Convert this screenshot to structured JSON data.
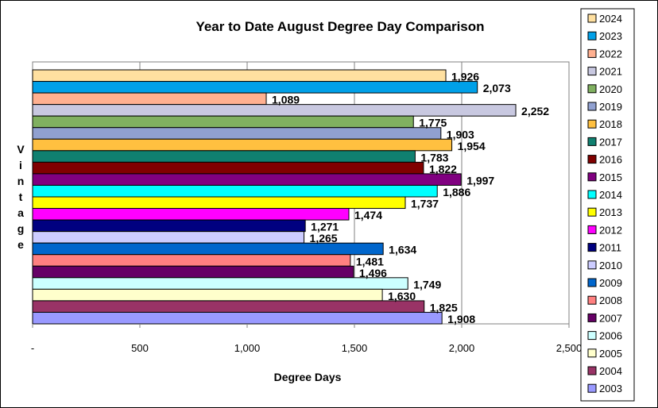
{
  "chart_data": {
    "type": "bar",
    "orientation": "horizontal",
    "title": "Year to Date August Degree Day Comparison",
    "xlabel": "Degree Days",
    "ylabel": "Vintage",
    "xlim": [
      0,
      2500
    ],
    "x_ticks": [
      0,
      500,
      1000,
      1500,
      2000,
      2500
    ],
    "x_tick_labels": [
      "-",
      "500",
      "1,000",
      "1,500",
      "2,000",
      "2,500"
    ],
    "grid": "vertical",
    "legend_position": "right",
    "categories": [
      "2024",
      "2023",
      "2022",
      "2021",
      "2020",
      "2019",
      "2018",
      "2017",
      "2016",
      "2015",
      "2014",
      "2013",
      "2012",
      "2011",
      "2010",
      "2009",
      "2008",
      "2007",
      "2006",
      "2005",
      "2004",
      "2003"
    ],
    "values": [
      1926,
      2073,
      1089,
      2252,
      1775,
      1903,
      1954,
      1783,
      1822,
      1997,
      1886,
      1737,
      1474,
      1271,
      1265,
      1634,
      1481,
      1496,
      1749,
      1630,
      1825,
      1908
    ],
    "value_labels": [
      "1,926",
      "2,073",
      "1,089",
      "2,252",
      "1,775",
      "1,903",
      "1,954",
      "1,783",
      "1,822",
      "1,997",
      "1,886",
      "1,737",
      "1,474",
      "1,271",
      "1,265",
      "1,634",
      "1,481",
      "1,496",
      "1,749",
      "1,630",
      "1,825",
      "1,908"
    ],
    "colors": [
      "#FFE0A0",
      "#00A0E8",
      "#FFB090",
      "#C8C8E0",
      "#80B060",
      "#90A0D0",
      "#FFC040",
      "#108070",
      "#800000",
      "#800080",
      "#00FFFF",
      "#FFFF00",
      "#FF00FF",
      "#000080",
      "#CCCCFF",
      "#0066CC",
      "#FF8080",
      "#660066",
      "#CCFFFF",
      "#FFFFCC",
      "#993366",
      "#9999FF"
    ]
  }
}
